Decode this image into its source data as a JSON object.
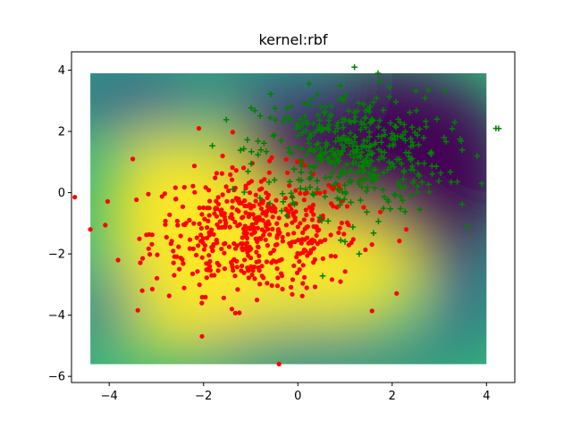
{
  "chart_data": {
    "type": "scatter",
    "title": "kernel:rbf",
    "xlabel": "",
    "ylabel": "",
    "xlim": [
      -4.8,
      4.6
    ],
    "ylim": [
      -6.2,
      4.6
    ],
    "xticks": [
      -4,
      -2,
      0,
      2,
      4
    ],
    "yticks": [
      -6,
      -4,
      -2,
      0,
      2,
      4
    ],
    "xtick_labels": [
      "−4",
      "−2",
      "0",
      "2",
      "4"
    ],
    "ytick_labels": [
      "−6",
      "−4",
      "−2",
      "0",
      "2",
      "4"
    ],
    "grid": false,
    "legend": "none",
    "background": {
      "type": "heatmap",
      "x_range": [
        -4.4,
        4.0
      ],
      "y_range": [
        -5.6,
        3.9
      ],
      "colormap": "viridis",
      "colors": [
        "#440154",
        "#31688e",
        "#35b779",
        "#fde725"
      ],
      "description": "decision function of rbf SVM classifier"
    },
    "series": [
      {
        "marker": "circle",
        "color": "#ff0000",
        "center": [
          -0.9,
          -1.3
        ],
        "spread": [
          1.1,
          1.0
        ],
        "count": 500,
        "points_extra": [
          [
            -4.4,
            -1.2
          ],
          [
            -0.4,
            -5.6
          ],
          [
            -3.3,
            -3.2
          ],
          [
            -3.5,
            1.1
          ],
          [
            -2.1,
            2.1
          ],
          [
            -1.4,
            -3.8
          ],
          [
            2.3,
            -1.2
          ],
          [
            -2.3,
            -0.9
          ]
        ]
      },
      {
        "marker": "plus",
        "color": "#008000",
        "center": [
          1.1,
          1.3
        ],
        "spread": [
          1.0,
          1.0
        ],
        "count": 450,
        "points_extra": [
          [
            4.2,
            2.1
          ],
          [
            1.2,
            4.1
          ],
          [
            1.7,
            3.9
          ],
          [
            3.8,
            1.2
          ],
          [
            3.9,
            0.3
          ],
          [
            3.6,
            -1.1
          ],
          [
            3.1,
            1.8
          ],
          [
            1.0,
            -1.6
          ],
          [
            1.3,
            -2.0
          ],
          [
            0.9,
            3.5
          ]
        ]
      }
    ]
  }
}
